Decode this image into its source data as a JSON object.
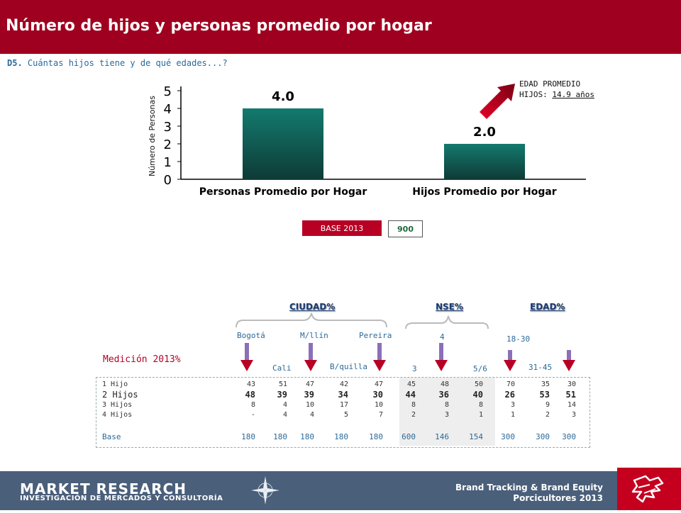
{
  "header": {
    "title": "Número de hijos y personas promedio por hogar"
  },
  "question": {
    "code": "D5.",
    "text": " Cuántas hijos tiene y de qué edades...?"
  },
  "edad_promedio": {
    "line1": "EDAD PROMEDIO",
    "label": "HIJOS: ",
    "value": "14.9 años"
  },
  "chart_data": {
    "type": "bar",
    "ylabel": "Número de Personas",
    "xlabel": "",
    "ylim": [
      0,
      5
    ],
    "yticks": [
      0,
      1,
      2,
      3,
      4,
      5
    ],
    "categories": [
      "Personas Promedio por Hogar",
      "Hijos Promedio por Hogar"
    ],
    "values": [
      4.0,
      2.0
    ],
    "data_labels": [
      "4.0",
      "2.0"
    ],
    "bar_color": "#137a6e",
    "bar_color_dark": "#0e3b36",
    "grid": false
  },
  "base": {
    "label": "BASE 2013",
    "value": "900"
  },
  "segments": {
    "ciudad": {
      "title": "CIUDAD%",
      "columns": [
        "Bogotá",
        "Cali",
        "M/llín",
        "B/quilla",
        "Pereira"
      ]
    },
    "nse": {
      "title": "NSE%",
      "columns": [
        "3",
        "4",
        "5/6"
      ]
    },
    "edad": {
      "title": "EDAD%",
      "columns": [
        "18-30",
        "31-45",
        ""
      ]
    }
  },
  "medicion": "Medición 2013%",
  "table": {
    "rows": [
      {
        "label": "1 Hijo",
        "values": [
          "43",
          "51",
          "47",
          "42",
          "47",
          "45",
          "48",
          "50",
          "70",
          "35",
          "30"
        ]
      },
      {
        "label": "2 Hijos",
        "values": [
          "48",
          "39",
          "39",
          "34",
          "30",
          "44",
          "36",
          "40",
          "26",
          "53",
          "51"
        ]
      },
      {
        "label": "3 Hijos",
        "values": [
          "8",
          "4",
          "10",
          "17",
          "10",
          "8",
          "8",
          "8",
          "3",
          "9",
          "14"
        ]
      },
      {
        "label": "4 Hijos",
        "values": [
          "-",
          "4",
          "4",
          "5",
          "7",
          "2",
          "3",
          "1",
          "1",
          "2",
          "3"
        ]
      },
      {
        "label": "Base",
        "values": [
          "180",
          "180",
          "180",
          "180",
          "180",
          "600",
          "146",
          "154",
          "300",
          "300",
          "300"
        ]
      }
    ]
  },
  "footer": {
    "brand": "MARKET RESEARCH",
    "sub": "INVESTIGACIÓN DE MERCADOS Y CONSULTORÍA",
    "right1": "Brand Tracking & Brand Equity",
    "right2": "Porcicultores 2013"
  },
  "colors": {
    "header": "#a0001f",
    "accent_red": "#b80024",
    "footer": "#4a5f7a",
    "arrow": "#8b6fb8"
  }
}
